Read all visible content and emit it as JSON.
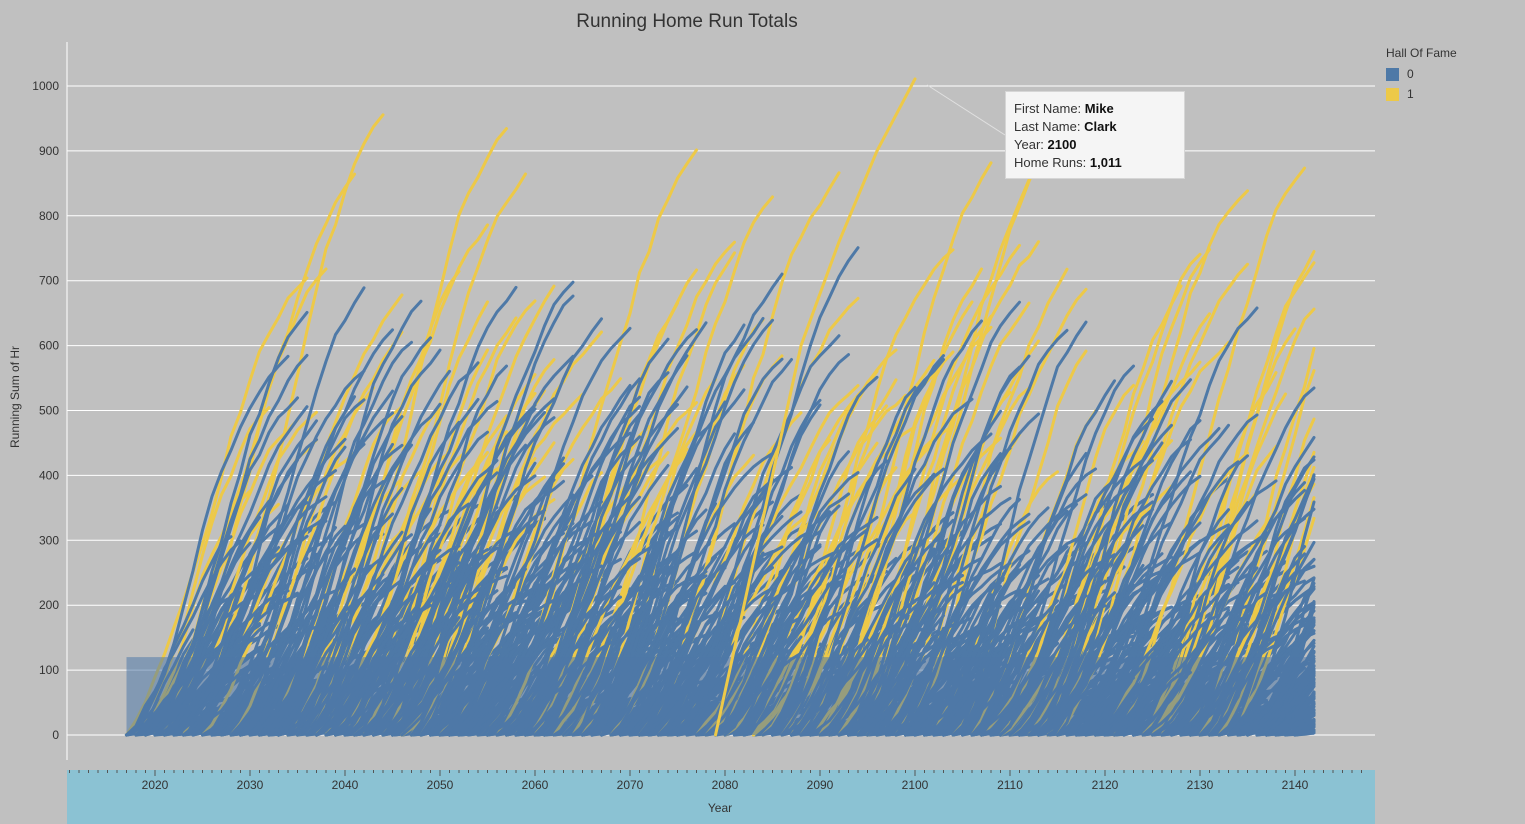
{
  "colors": {
    "background": "#c0c0c0",
    "hof_0": "#4e79a7",
    "hof_1": "#edc948",
    "axis_band": "#8bc2d3",
    "grid": "#ffffff"
  },
  "legend": {
    "title": "Hall Of Fame",
    "items": [
      {
        "label": "0",
        "color": "#4e79a7"
      },
      {
        "label": "1",
        "color": "#edc948"
      }
    ]
  },
  "tooltip": {
    "rows": [
      {
        "key": "First Name:",
        "value": "Mike"
      },
      {
        "key": "Last Name:",
        "value": "Clark"
      },
      {
        "key": "Year:",
        "value": "2100"
      },
      {
        "key": "Home Runs:",
        "value": "1,011"
      }
    ]
  },
  "chart_data": {
    "type": "line",
    "title": "Running Home Run Totals",
    "xlabel": "Year",
    "ylabel": "Running Sum of Hr",
    "xlim": [
      2017,
      2142
    ],
    "ylim": [
      0,
      1000
    ],
    "xticks": [
      2020,
      2030,
      2040,
      2050,
      2060,
      2070,
      2080,
      2090,
      2100,
      2110,
      2120,
      2130,
      2140
    ],
    "yticks": [
      0,
      100,
      200,
      300,
      400,
      500,
      600,
      700,
      800,
      900,
      1000
    ],
    "grid": true,
    "legend_position": "top-right",
    "series": [
      {
        "name": "1",
        "peak": [
          [
            2100,
            1011
          ]
        ]
      },
      {
        "name": "1",
        "trend": [
          [
            2088,
            600
          ],
          [
            2092,
            760
          ],
          [
            2096,
            900
          ],
          [
            2100,
            1011
          ]
        ]
      }
    ]
  }
}
